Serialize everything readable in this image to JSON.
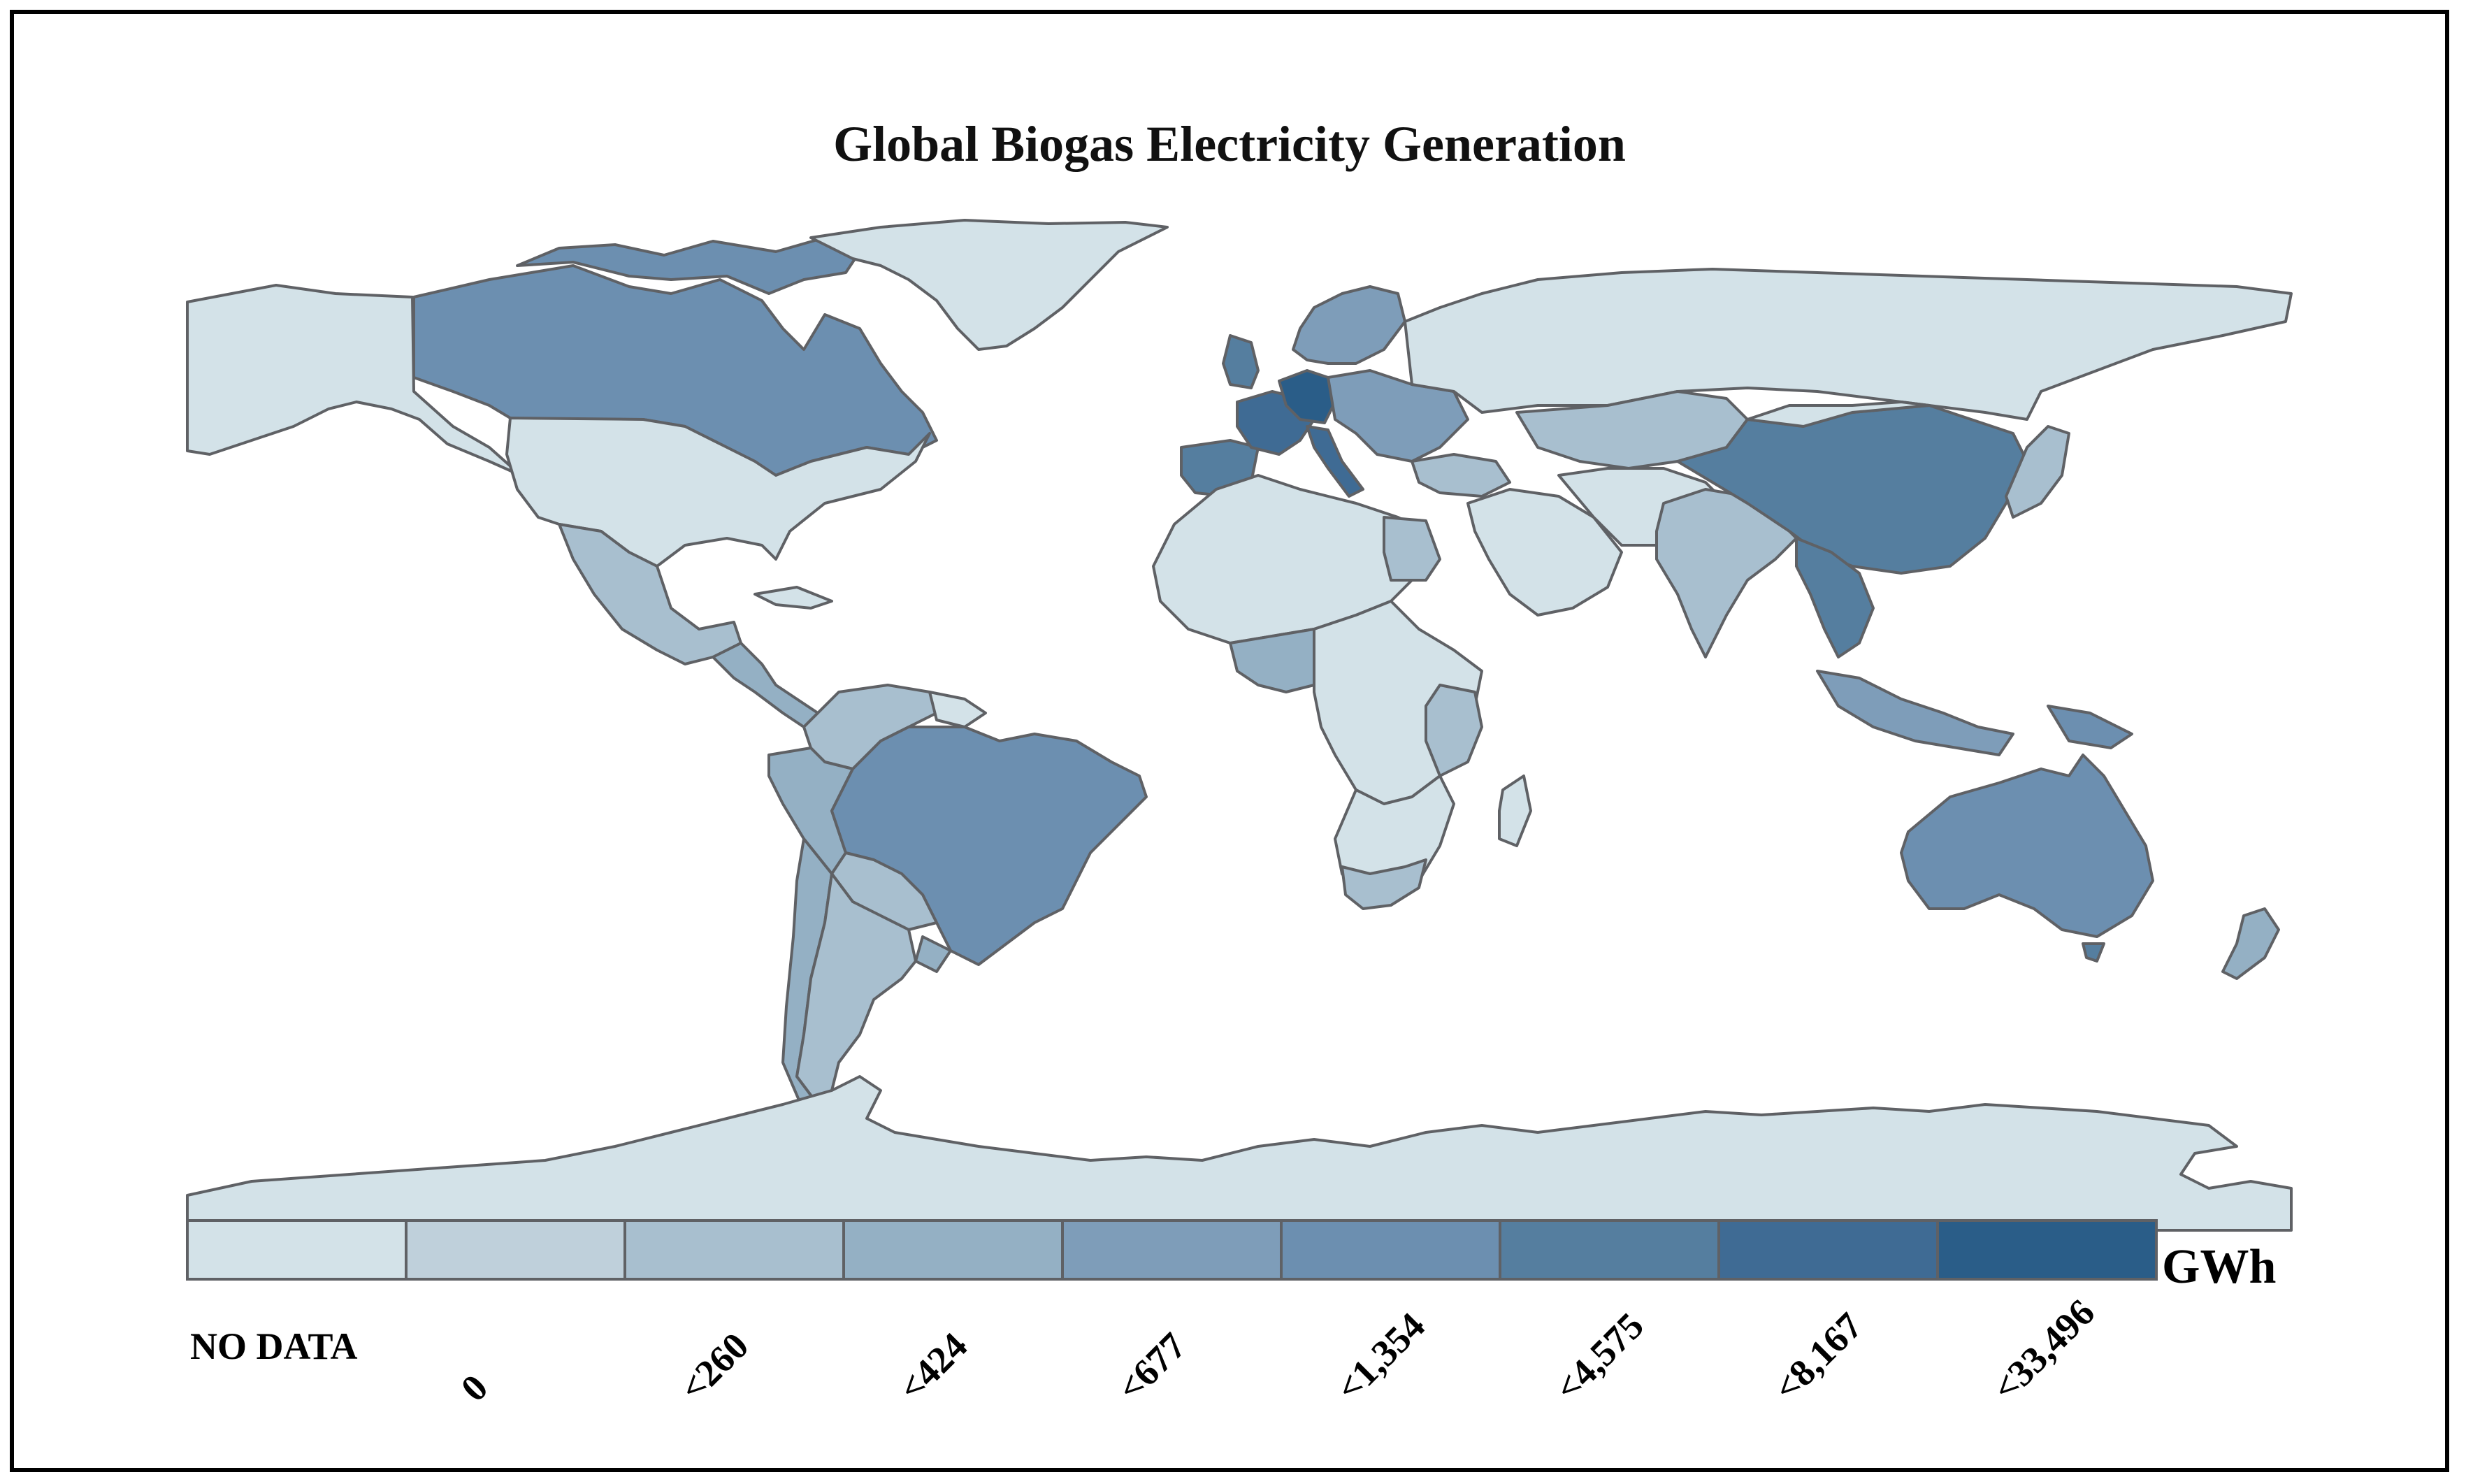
{
  "title": "Global Biogas Electricity Generation",
  "legend": {
    "unit": "GWh",
    "classes": [
      {
        "label": "NO DATA",
        "color": "#d3e2e8"
      },
      {
        "label": "0",
        "color": "#bfd0db"
      },
      {
        "label": "<260",
        "color": "#a8bfcf"
      },
      {
        "label": "<424",
        "color": "#94b0c4"
      },
      {
        "label": "<677",
        "color": "#7e9db9"
      },
      {
        "label": "<1,354",
        "color": "#6c8fb0"
      },
      {
        "label": "<4,575",
        "color": "#557e9f"
      },
      {
        "label": "<8,167",
        "color": "#3f6b94"
      },
      {
        "label": "<33,496",
        "color": "#2a5d88"
      }
    ]
  },
  "colors": {
    "border": "#5f6165",
    "background": "#ffffff"
  }
}
